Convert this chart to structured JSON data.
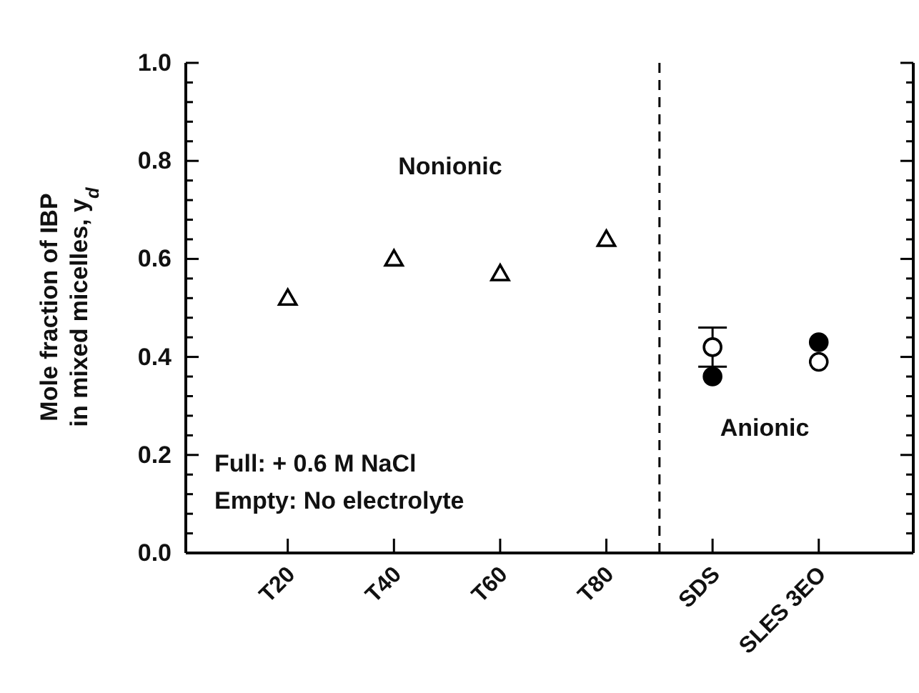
{
  "chart_data": {
    "type": "scatter",
    "ylabel": "Mole fraction of IBP\nin mixed micelles, y$_{d}$",
    "categories": [
      "T20",
      "T40",
      "T60",
      "T80",
      "SDS",
      "SLES 3EO"
    ],
    "series": [
      {
        "marker": "triangle",
        "color": "#ffffff",
        "values": [
          0.52,
          0.6,
          0.57,
          0.64,
          null,
          null
        ]
      },
      {
        "marker": "circle",
        "color": "#000000",
        "values": [
          null,
          null,
          null,
          null,
          0.36,
          0.43
        ]
      },
      {
        "marker": "circle",
        "color": "#ffffff",
        "values": [
          null,
          null,
          null,
          null,
          0.42,
          0.39
        ],
        "errors": [
          null,
          null,
          null,
          null,
          0.04,
          null
        ]
      }
    ],
    "ylim": [
      0,
      1
    ],
    "yticks": [
      {
        "value": 0,
        "label": "0.0"
      },
      {
        "value": 0.04,
        "label": null
      },
      {
        "value": 0.08,
        "label": null
      },
      {
        "value": 0.12,
        "label": null
      },
      {
        "value": 0.16,
        "label": null
      },
      {
        "value": 0.2,
        "label": "0.2"
      },
      {
        "value": 0.24,
        "label": null
      },
      {
        "value": 0.28,
        "label": null
      },
      {
        "value": 0.32,
        "label": null
      },
      {
        "value": 0.36,
        "label": null
      },
      {
        "value": 0.4,
        "label": "0.4"
      },
      {
        "value": 0.44,
        "label": null
      },
      {
        "value": 0.48,
        "label": null
      },
      {
        "value": 0.52,
        "label": null
      },
      {
        "value": 0.56,
        "label": null
      },
      {
        "value": 0.6,
        "label": "0.6"
      },
      {
        "value": 0.64,
        "label": null
      },
      {
        "value": 0.68,
        "label": null
      },
      {
        "value": 0.72,
        "label": null
      },
      {
        "value": 0.76,
        "label": null
      },
      {
        "value": 0.8,
        "label": "0.8"
      },
      {
        "value": 0.84,
        "label": null
      },
      {
        "value": 0.88,
        "label": null
      },
      {
        "value": 0.92,
        "label": null
      },
      {
        "value": 0.96,
        "label": null
      },
      {
        "value": 1,
        "label": "1.0"
      }
    ],
    "annotations": [
      "Nonionic",
      "Anionic",
      "Full: + 0.6 M NaCl",
      "Empty: No electrolyte"
    ]
  }
}
